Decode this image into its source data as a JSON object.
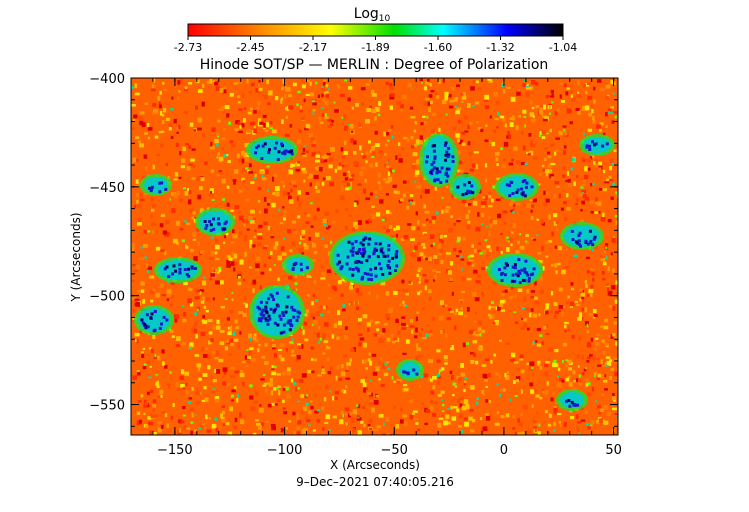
{
  "colorbar": {
    "label_base": "Log",
    "label_sub": "10",
    "ticks": [
      "-2.73",
      "-2.45",
      "-2.17",
      "-1.89",
      "-1.60",
      "-1.32",
      "-1.04"
    ],
    "colors": [
      "#ff0000",
      "#ff8c00",
      "#ffff00",
      "#00e000",
      "#00ffff",
      "#0000ff",
      "#000000"
    ]
  },
  "chart_data": {
    "type": "heatmap",
    "title": "Hinode SOT/SP — MERLIN : Degree of Polarization",
    "xlabel": "X (Arcseconds)",
    "ylabel": "Y (Arcseconds)",
    "xlim": [
      -170,
      52
    ],
    "ylim": [
      -564,
      -400
    ],
    "x_ticks": [
      "-150",
      "-100",
      "-50",
      "0",
      "50"
    ],
    "y_ticks": [
      "-400",
      "-450",
      "-500",
      "-550"
    ],
    "colorbar_range": [
      -2.73,
      -1.04
    ],
    "colorbar_scale": "log10"
  },
  "timestamp": "9–Dec–2021 07:40:05.216"
}
